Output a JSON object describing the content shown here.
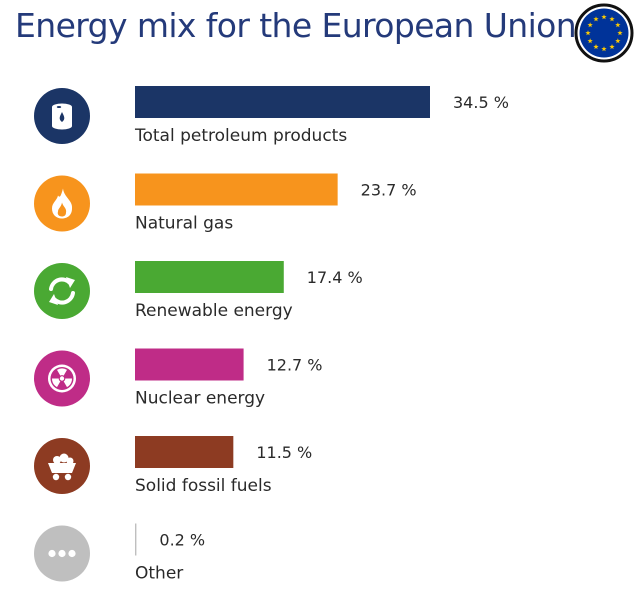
{
  "chart_data": {
    "type": "bar",
    "orientation": "horizontal",
    "title": "Energy mix for the European Union",
    "unit": "%",
    "categories": [
      "Total petroleum products",
      "Natural gas",
      "Renewable energy",
      "Nuclear energy",
      "Solid fossil fuels",
      "Other"
    ],
    "values": [
      34.5,
      23.7,
      17.4,
      12.7,
      11.5,
      0.2
    ],
    "value_labels": [
      "34.5 %",
      "23.7 %",
      "17.4 %",
      "12.7 %",
      "11.5 %",
      "0.2 %"
    ],
    "colors": [
      "#1b3566",
      "#f7941d",
      "#4aa933",
      "#bf2c87",
      "#8d3b22",
      "#bfbfbf"
    ],
    "icons": [
      "oil-barrel-icon",
      "flame-icon",
      "recycle-arrows-icon",
      "radiation-icon",
      "coal-cart-icon",
      "ellipsis-icon"
    ],
    "legend": "none",
    "grid": false
  },
  "flag": {
    "name": "eu-flag-icon",
    "background": "#003399",
    "star_color": "#ffcc00"
  }
}
